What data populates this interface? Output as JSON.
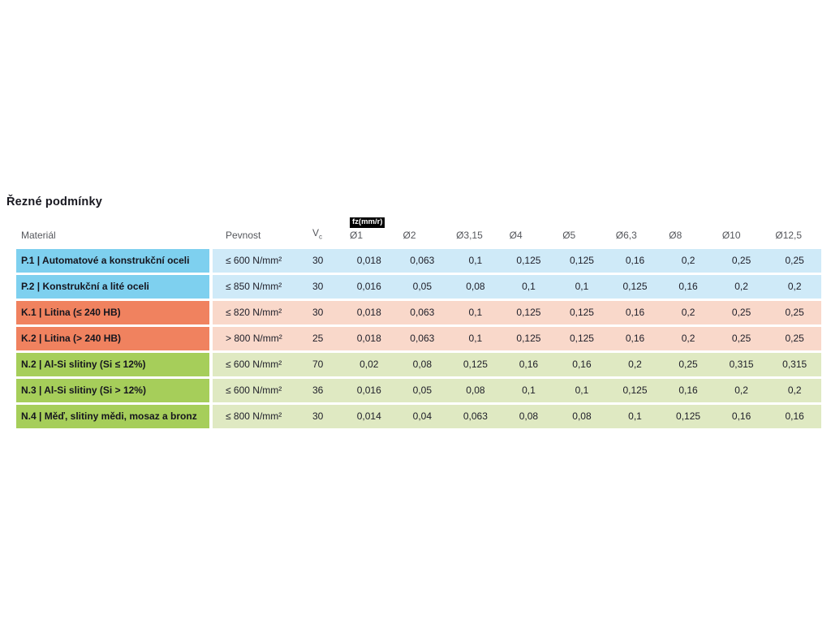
{
  "title": "Řezné podmínky",
  "table": {
    "headers": {
      "material": "Materiál",
      "strength": "Pevnost",
      "vc_main": "V",
      "vc_sub": "c",
      "fz_badge": "fz(mm/r)",
      "diameters": [
        "Ø1",
        "Ø2",
        "Ø3,15",
        "Ø4",
        "Ø5",
        "Ø6,3",
        "Ø8",
        "Ø10",
        "Ø12,5"
      ]
    },
    "colors": {
      "steel": {
        "cell": "#7ed0ef",
        "row": "#cfeaf8"
      },
      "cast_iron": {
        "cell": "#f0825f",
        "row": "#f9d8ca"
      },
      "nonferrous": {
        "cell": "#a6ce5a",
        "row": "#dfe9c2"
      }
    },
    "rows": [
      {
        "group": "steel",
        "material": "P.1 | Automatové a konstrukční oceli",
        "strength": "≤ 600 N/mm²",
        "vc": "30",
        "fz": [
          "0,018",
          "0,063",
          "0,1",
          "0,125",
          "0,125",
          "0,16",
          "0,2",
          "0,25",
          "0,25"
        ]
      },
      {
        "group": "steel",
        "material": "P.2 | Konstrukční a lité oceli",
        "strength": "≤ 850 N/mm²",
        "vc": "30",
        "fz": [
          "0,016",
          "0,05",
          "0,08",
          "0,1",
          "0,1",
          "0,125",
          "0,16",
          "0,2",
          "0,2"
        ]
      },
      {
        "group": "cast_iron",
        "material": "K.1 | Litina (≤ 240 HB)",
        "strength": "≤ 820 N/mm²",
        "vc": "30",
        "fz": [
          "0,018",
          "0,063",
          "0,1",
          "0,125",
          "0,125",
          "0,16",
          "0,2",
          "0,25",
          "0,25"
        ]
      },
      {
        "group": "cast_iron",
        "material": "K.2 | Litina (> 240 HB)",
        "strength": "> 800 N/mm²",
        "vc": "25",
        "fz": [
          "0,018",
          "0,063",
          "0,1",
          "0,125",
          "0,125",
          "0,16",
          "0,2",
          "0,25",
          "0,25"
        ]
      },
      {
        "group": "nonferrous",
        "material": "N.2 | Al-Si slitiny (Si ≤ 12%)",
        "strength": "≤ 600 N/mm²",
        "vc": "70",
        "fz": [
          "0,02",
          "0,08",
          "0,125",
          "0,16",
          "0,16",
          "0,2",
          "0,25",
          "0,315",
          "0,315"
        ]
      },
      {
        "group": "nonferrous",
        "material": "N.3 | Al-Si slitiny (Si > 12%)",
        "strength": "≤ 600 N/mm²",
        "vc": "36",
        "fz": [
          "0,016",
          "0,05",
          "0,08",
          "0,1",
          "0,1",
          "0,125",
          "0,16",
          "0,2",
          "0,2"
        ]
      },
      {
        "group": "nonferrous",
        "material": "N.4 | Měď, slitiny mědi, mosaz a bronz",
        "strength": "≤ 800 N/mm²",
        "vc": "30",
        "fz": [
          "0,014",
          "0,04",
          "0,063",
          "0,08",
          "0,08",
          "0,1",
          "0,125",
          "0,16",
          "0,16"
        ]
      }
    ]
  }
}
